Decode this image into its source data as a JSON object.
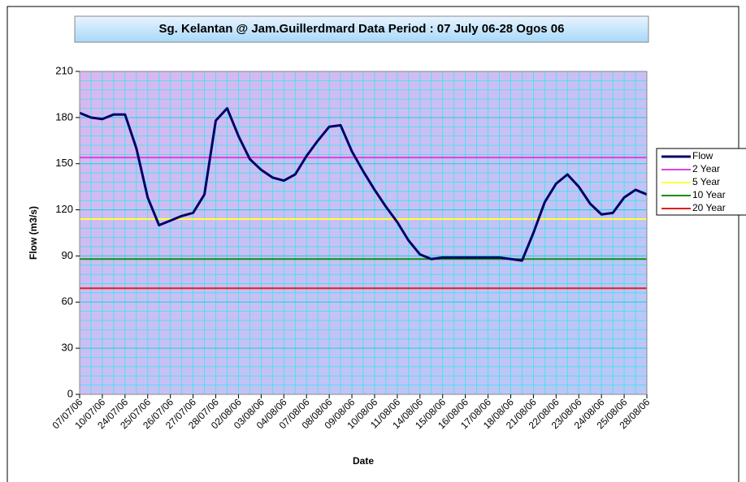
{
  "chart_data": {
    "type": "line",
    "title": "Sg. Kelantan @ Jam.Guillerdmard Data Period : 07 July 06-28 Ogos 06",
    "x_label": "Date",
    "y_label": "Flow (m3/s)",
    "categories": [
      "07/07/06",
      null,
      "10/07/06",
      null,
      "24/07/06",
      null,
      "25/07/06",
      null,
      "26/07/06",
      null,
      "27/07/06",
      null,
      "28/07/06",
      null,
      "02/08/06",
      null,
      "03/08/06",
      null,
      "04/08/06",
      null,
      "07/08/06",
      null,
      "08/08/06",
      null,
      "09/08/06",
      null,
      "10/08/06",
      null,
      "11/08/06",
      null,
      "14/08/06",
      null,
      "15/08/06",
      null,
      "16/08/06",
      null,
      "17/08/06",
      null,
      "18/08/06",
      null,
      "21/08/06",
      null,
      "22/08/06",
      null,
      "23/08/06",
      null,
      "24/08/06",
      null,
      "25/08/06",
      null,
      "28/08/06"
    ],
    "series": [
      {
        "name": "Flow",
        "color": "#000066",
        "values": [
          183,
          180,
          179,
          182,
          182,
          160,
          128,
          110,
          113,
          116,
          118,
          130,
          178,
          186,
          168,
          153,
          146,
          141,
          139,
          143,
          155,
          165,
          174,
          175,
          158,
          145,
          133,
          122,
          112,
          100,
          91,
          88,
          89,
          89,
          89,
          89,
          89,
          89,
          88,
          87,
          105,
          125,
          137,
          143,
          135,
          124,
          117,
          118,
          128,
          133,
          130
        ]
      }
    ],
    "reference_lines": [
      {
        "name": "2 Year",
        "color": "#e040e0",
        "value": 154
      },
      {
        "name": "5 Year",
        "color": "#ffff40",
        "value": 114
      },
      {
        "name": "10 Year",
        "color": "#109010",
        "value": 88
      },
      {
        "name": "20 Year",
        "color": "#e02020",
        "value": 69
      }
    ],
    "ylim": [
      0,
      210
    ],
    "yticks": [
      0,
      30,
      60,
      90,
      120,
      150,
      180,
      210
    ],
    "grid": true,
    "legend": "right"
  }
}
